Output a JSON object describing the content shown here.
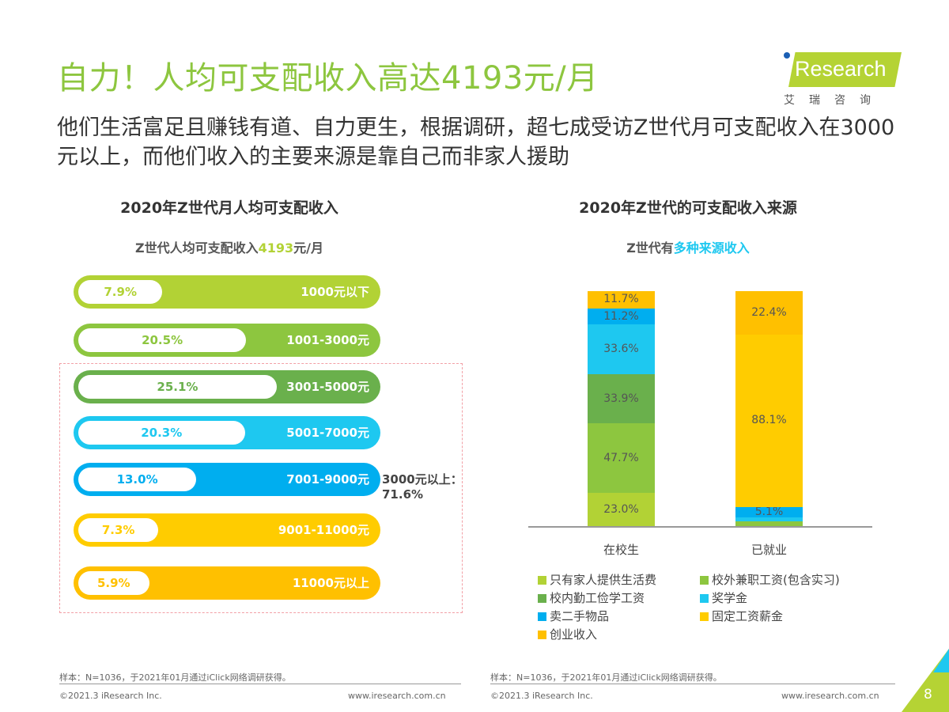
{
  "header": {
    "title": "自力！人均可支配收入高达4193元/月",
    "subtitle": "他们生活富足且赚钱有道、自力更生，根据调研，超七成受访Z世代月可支配收入在3000元以上，而他们收入的主要来源是靠自己而非家人援助",
    "logo": {
      "brand": "iResearch",
      "cn": "艾瑞咨询"
    }
  },
  "left": {
    "title": "2020年Z世代月人均可支配收入",
    "subtitle_pre": "Z世代人均可支配收入",
    "subtitle_value": "4193",
    "subtitle_post": "元/月",
    "note_line1": "3000元以上：",
    "note_line2": "71.6%"
  },
  "right": {
    "title": "2020年Z世代的可支配收入来源",
    "subtitle_pre": "Z世代有",
    "subtitle_hl": "多种来源收入"
  },
  "chart_data": [
    {
      "type": "bar",
      "orientation": "horizontal",
      "title": "2020年Z世代月人均可支配收入",
      "categories": [
        "1000元以下",
        "1001-3000元",
        "3001-5000元",
        "5001-7000元",
        "7001-9000元",
        "9001-11000元",
        "11000元以上"
      ],
      "values": [
        7.9,
        20.5,
        25.1,
        20.3,
        13.0,
        7.3,
        5.9
      ],
      "labels": [
        "7.9%",
        "20.5%",
        "25.1%",
        "20.3%",
        "13.0%",
        "7.3%",
        "5.9%"
      ],
      "colors": [
        "#b2d235",
        "#8dc63f",
        "#6ab04c",
        "#1ec8f0",
        "#00aeef",
        "#ffcc00",
        "#ffc000"
      ],
      "unit": "%"
    },
    {
      "type": "bar",
      "stacked": true,
      "title": "2020年Z世代的可支配收入来源",
      "categories": [
        "在校生",
        "已就业"
      ],
      "series": [
        {
          "name": "只有家人提供生活费",
          "color": "#b2d235",
          "values": [
            23.0,
            0
          ]
        },
        {
          "name": "校外兼职工资(包含实习)",
          "color": "#8dc63f",
          "values": [
            47.7,
            3.0
          ]
        },
        {
          "name": "校内勤工俭学工资",
          "color": "#6ab04c",
          "values": [
            33.9,
            0
          ]
        },
        {
          "name": "奖学金",
          "color": "#1ec8f0",
          "values": [
            33.6,
            2.0
          ]
        },
        {
          "name": "卖二手物品",
          "color": "#00aeef",
          "values": [
            11.2,
            5.1
          ]
        },
        {
          "name": "固定工资薪金",
          "color": "#ffcc00",
          "values": [
            0,
            88.1
          ]
        },
        {
          "name": "创业收入",
          "color": "#ffc000",
          "values": [
            11.7,
            22.4
          ]
        }
      ],
      "labels": [
        [
          "23.0%",
          "47.7%",
          "33.9%",
          "33.6%",
          "11.2%",
          null,
          "11.7%"
        ],
        [
          null,
          null,
          null,
          null,
          "5.1%",
          "88.1%",
          "22.4%"
        ]
      ],
      "legend_position": "bottom"
    }
  ],
  "footer": {
    "sample": "样本：N=1036，于2021年01月通过iClick网络调研获得。",
    "copyright": "©2021.3 iResearch Inc.",
    "url": "www.iresearch.com.cn",
    "page": "8"
  }
}
